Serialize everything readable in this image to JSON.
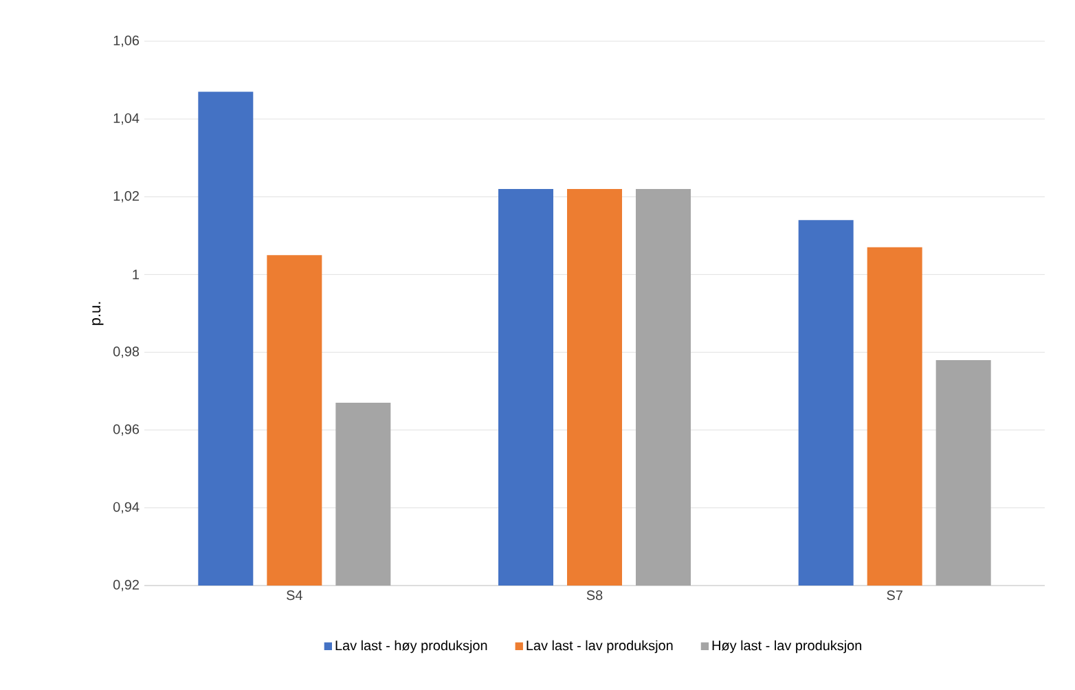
{
  "chart_data": {
    "type": "bar",
    "ylabel": "p.u.",
    "categories": [
      "S4",
      "S8",
      "S7"
    ],
    "series": [
      {
        "name": "Lav last - høy produksjon",
        "color": "#4472c4",
        "values": [
          1.047,
          1.022,
          1.014
        ]
      },
      {
        "name": "Lav last - lav produksjon",
        "color": "#ed7d31",
        "values": [
          1.005,
          1.022,
          1.007
        ]
      },
      {
        "name": "Høy last - lav produksjon",
        "color": "#a5a5a5",
        "values": [
          0.967,
          1.022,
          0.978
        ]
      }
    ],
    "ylim": [
      0.92,
      1.06
    ],
    "yticks": [
      {
        "value": 0.92,
        "label": "0,92"
      },
      {
        "value": 0.94,
        "label": "0,94"
      },
      {
        "value": 0.96,
        "label": "0,96"
      },
      {
        "value": 0.98,
        "label": "0,98"
      },
      1,
      {
        "value": 1.02,
        "label": "1,02"
      },
      {
        "value": 1.04,
        "label": "1,04"
      },
      {
        "value": 1.06,
        "label": "1,06"
      }
    ],
    "grid": "y",
    "legend": "bottom"
  }
}
